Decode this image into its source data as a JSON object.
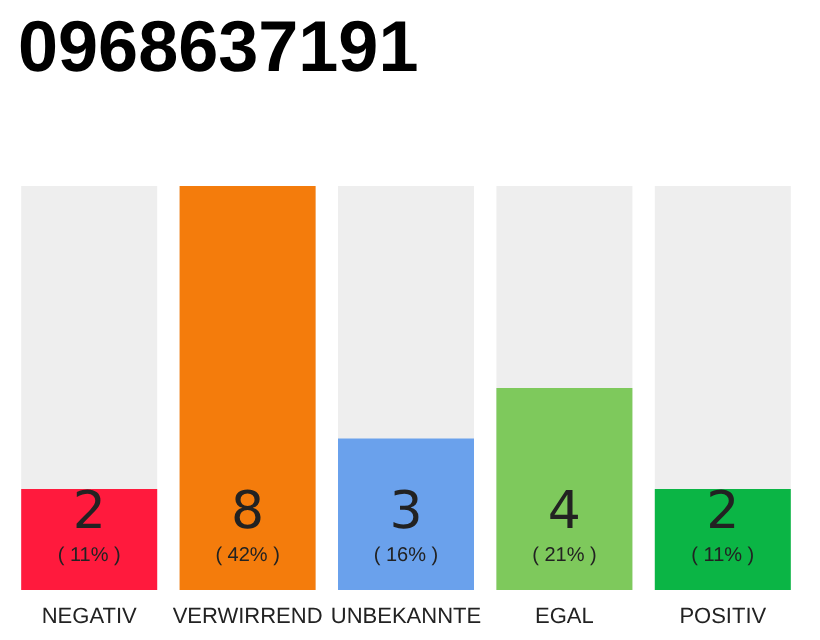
{
  "chart_data": {
    "type": "bar",
    "title": "0968637191",
    "categories": [
      "NEGATIV",
      "VERWIRREND",
      "UNBEKANNTE",
      "EGAL",
      "POSITIV"
    ],
    "values": [
      2,
      8,
      3,
      4,
      2
    ],
    "colors": [
      "#ff1a3d",
      "#f47c0c",
      "#6aa1ec",
      "#7ec95c",
      "#0bb545"
    ],
    "data_labels": true,
    "annotations": [
      "( 11% )",
      "( 42% )",
      "( 16% )",
      "( 21% )",
      "( 11% )"
    ]
  }
}
